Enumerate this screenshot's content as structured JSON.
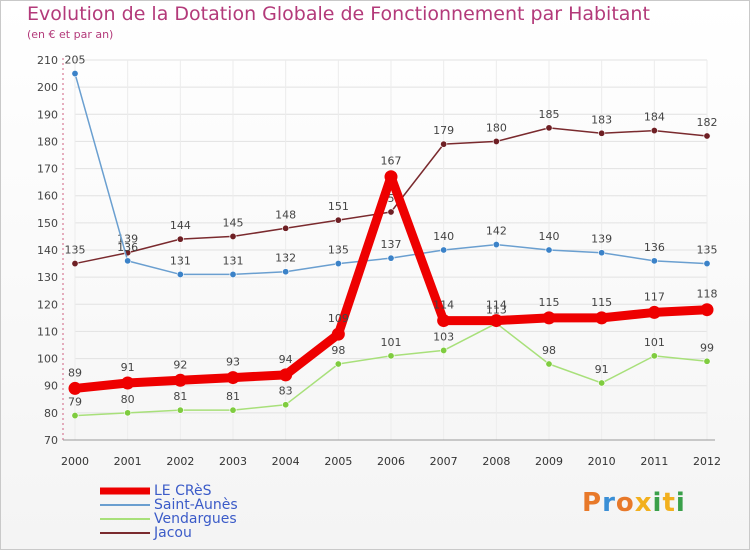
{
  "header": {
    "title": "Evolution de la Dotation Globale de Fonctionnement par Habitant",
    "subtitle": "(en € et par an)"
  },
  "logo": {
    "text": "Proxiti",
    "colors": [
      "#e8792a",
      "#3a8fd6",
      "#e8792a",
      "#f2b01e",
      "#3aa04a",
      "#f2b01e",
      "#3aa04a"
    ]
  },
  "chart_data": {
    "type": "line",
    "title": "Evolution de la Dotation Globale de Fonctionnement par Habitant",
    "subtitle": "(en € et par an)",
    "x": [
      "2000",
      "2001",
      "2002",
      "2003",
      "2004",
      "2005",
      "2006",
      "2007",
      "2008",
      "2009",
      "2010",
      "2011",
      "2012"
    ],
    "ylim": [
      70,
      210
    ],
    "yticks": [
      70,
      80,
      90,
      100,
      110,
      120,
      130,
      140,
      150,
      160,
      170,
      180,
      190,
      200,
      210
    ],
    "grid": true,
    "legend": "bottom-left",
    "series": [
      {
        "name": "Jacou",
        "color": "#7a2a2e",
        "marker": "#6e1f24",
        "thick": false,
        "values": [
          135,
          139,
          144,
          145,
          148,
          151,
          154,
          179,
          180,
          185,
          183,
          184,
          182
        ],
        "labels": [
          "135",
          "139",
          "144",
          "145",
          "148",
          "151",
          "154",
          "179",
          "180",
          "185",
          "183",
          "184",
          "182"
        ]
      },
      {
        "name": "Saint-Aunès",
        "color": "#6a9fd0",
        "marker": "#3b82c8",
        "thick": false,
        "values": [
          205,
          136,
          131,
          131,
          132,
          135,
          137,
          140,
          142,
          140,
          139,
          136,
          135
        ],
        "labels": [
          "205",
          "136",
          "131",
          "131",
          "132",
          "135",
          "137",
          "140",
          "142",
          "140",
          "139",
          "136",
          "135"
        ]
      },
      {
        "name": "Vendargues",
        "color": "#a8e07a",
        "marker": "#7fcc3f",
        "thick": false,
        "values": [
          79,
          80,
          81,
          81,
          83,
          98,
          101,
          103,
          113,
          98,
          91,
          101,
          99
        ],
        "labels": [
          "79",
          "80",
          "81",
          "81",
          "83",
          "98",
          "101",
          "103",
          "113",
          "98",
          "91",
          "101",
          "99"
        ]
      },
      {
        "name": "LE CRèS",
        "color": "#ee0000",
        "marker": "#ee0000",
        "thick": true,
        "values": [
          89,
          91,
          92,
          93,
          94,
          109,
          167,
          114,
          114,
          115,
          115,
          117,
          118
        ],
        "labels": [
          "89",
          "91",
          "92",
          "93",
          "94",
          "109",
          "167",
          "114",
          "114",
          "115",
          "115",
          "117",
          "118"
        ]
      }
    ],
    "legend_order": [
      "LE CRèS",
      "Saint-Aunès",
      "Vendargues",
      "Jacou"
    ]
  }
}
